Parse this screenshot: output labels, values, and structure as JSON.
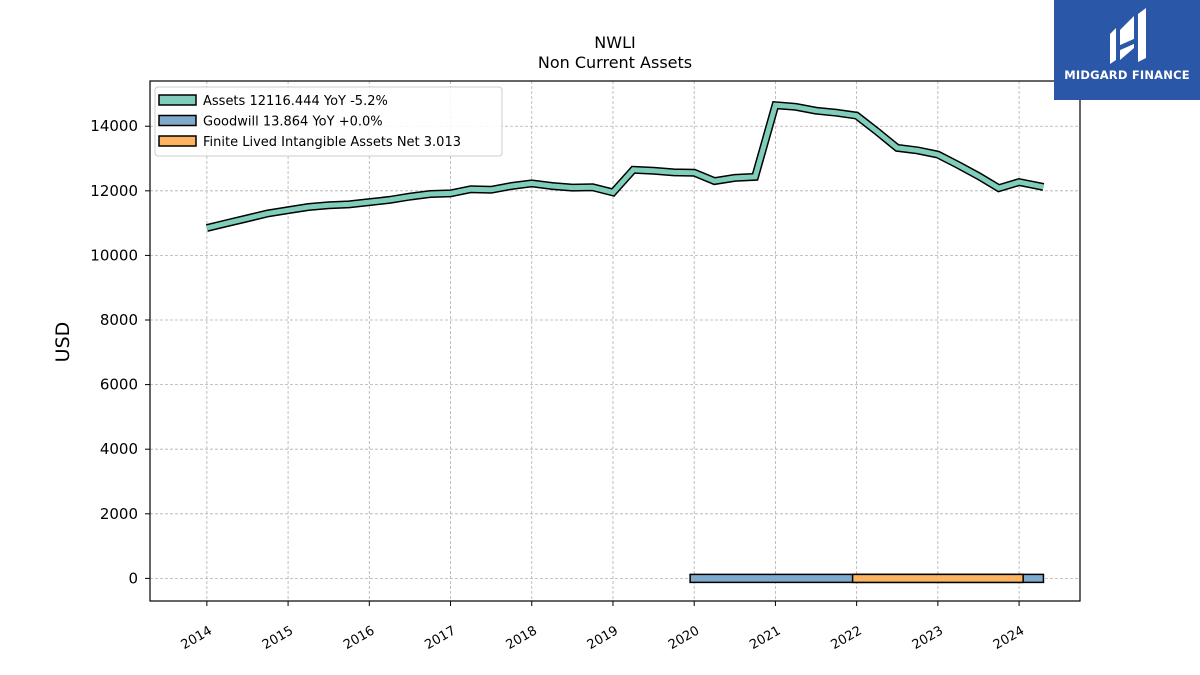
{
  "brand": {
    "name": "MIDGARD FINANCE",
    "logo_color": "#2a57a8"
  },
  "chart_data": {
    "type": "line",
    "title": "NWLI",
    "subtitle": "Non Current  Assets",
    "ylabel": "USD",
    "xlabel": "",
    "ylim": [
      -700,
      15400
    ],
    "xlim": [
      2013.3,
      2024.75
    ],
    "yticks": [
      0,
      2000,
      4000,
      6000,
      8000,
      10000,
      12000,
      14000
    ],
    "xticks": [
      "2014",
      "2015",
      "2016",
      "2017",
      "2018",
      "2019",
      "2020",
      "2021",
      "2022",
      "2023",
      "2024"
    ],
    "grid": true,
    "legend_position": "top-left",
    "series": [
      {
        "name": "Assets",
        "legend_label": "Assets  12116.444 YoY -5.2%",
        "color": "#7fcdbb",
        "points": [
          [
            2014.0,
            10850
          ],
          [
            2014.25,
            11000
          ],
          [
            2014.5,
            11150
          ],
          [
            2014.75,
            11300
          ],
          [
            2015.0,
            11400
          ],
          [
            2015.25,
            11500
          ],
          [
            2015.5,
            11550
          ],
          [
            2015.75,
            11580
          ],
          [
            2016.0,
            11650
          ],
          [
            2016.25,
            11720
          ],
          [
            2016.5,
            11820
          ],
          [
            2016.75,
            11900
          ],
          [
            2017.0,
            11920
          ],
          [
            2017.25,
            12050
          ],
          [
            2017.5,
            12030
          ],
          [
            2017.75,
            12150
          ],
          [
            2018.0,
            12230
          ],
          [
            2018.25,
            12150
          ],
          [
            2018.5,
            12100
          ],
          [
            2018.75,
            12110
          ],
          [
            2019.0,
            11950
          ],
          [
            2019.25,
            12650
          ],
          [
            2019.5,
            12620
          ],
          [
            2019.75,
            12570
          ],
          [
            2020.0,
            12560
          ],
          [
            2020.25,
            12300
          ],
          [
            2020.5,
            12400
          ],
          [
            2020.75,
            12430
          ],
          [
            2021.0,
            14650
          ],
          [
            2021.25,
            14600
          ],
          [
            2021.5,
            14480
          ],
          [
            2021.75,
            14420
          ],
          [
            2022.0,
            14330
          ],
          [
            2022.25,
            13840
          ],
          [
            2022.5,
            13330
          ],
          [
            2022.75,
            13250
          ],
          [
            2023.0,
            13120
          ],
          [
            2023.25,
            12800
          ],
          [
            2023.5,
            12460
          ],
          [
            2023.75,
            12080
          ],
          [
            2024.0,
            12270
          ],
          [
            2024.3,
            12120
          ]
        ]
      },
      {
        "name": "Goodwill",
        "legend_label": "Goodwill  13.864 YoY +0.0%",
        "color": "#7faacc",
        "x_start": 2019.95,
        "x_end": 2024.3,
        "value": 13.864
      },
      {
        "name": "Finite Lived Intangible Assets Net",
        "legend_label": "Finite Lived Intangible Assets Net  3.013",
        "color": "#fdb462",
        "x_start": 2021.95,
        "x_end": 2024.05,
        "value": 3.013
      }
    ]
  }
}
